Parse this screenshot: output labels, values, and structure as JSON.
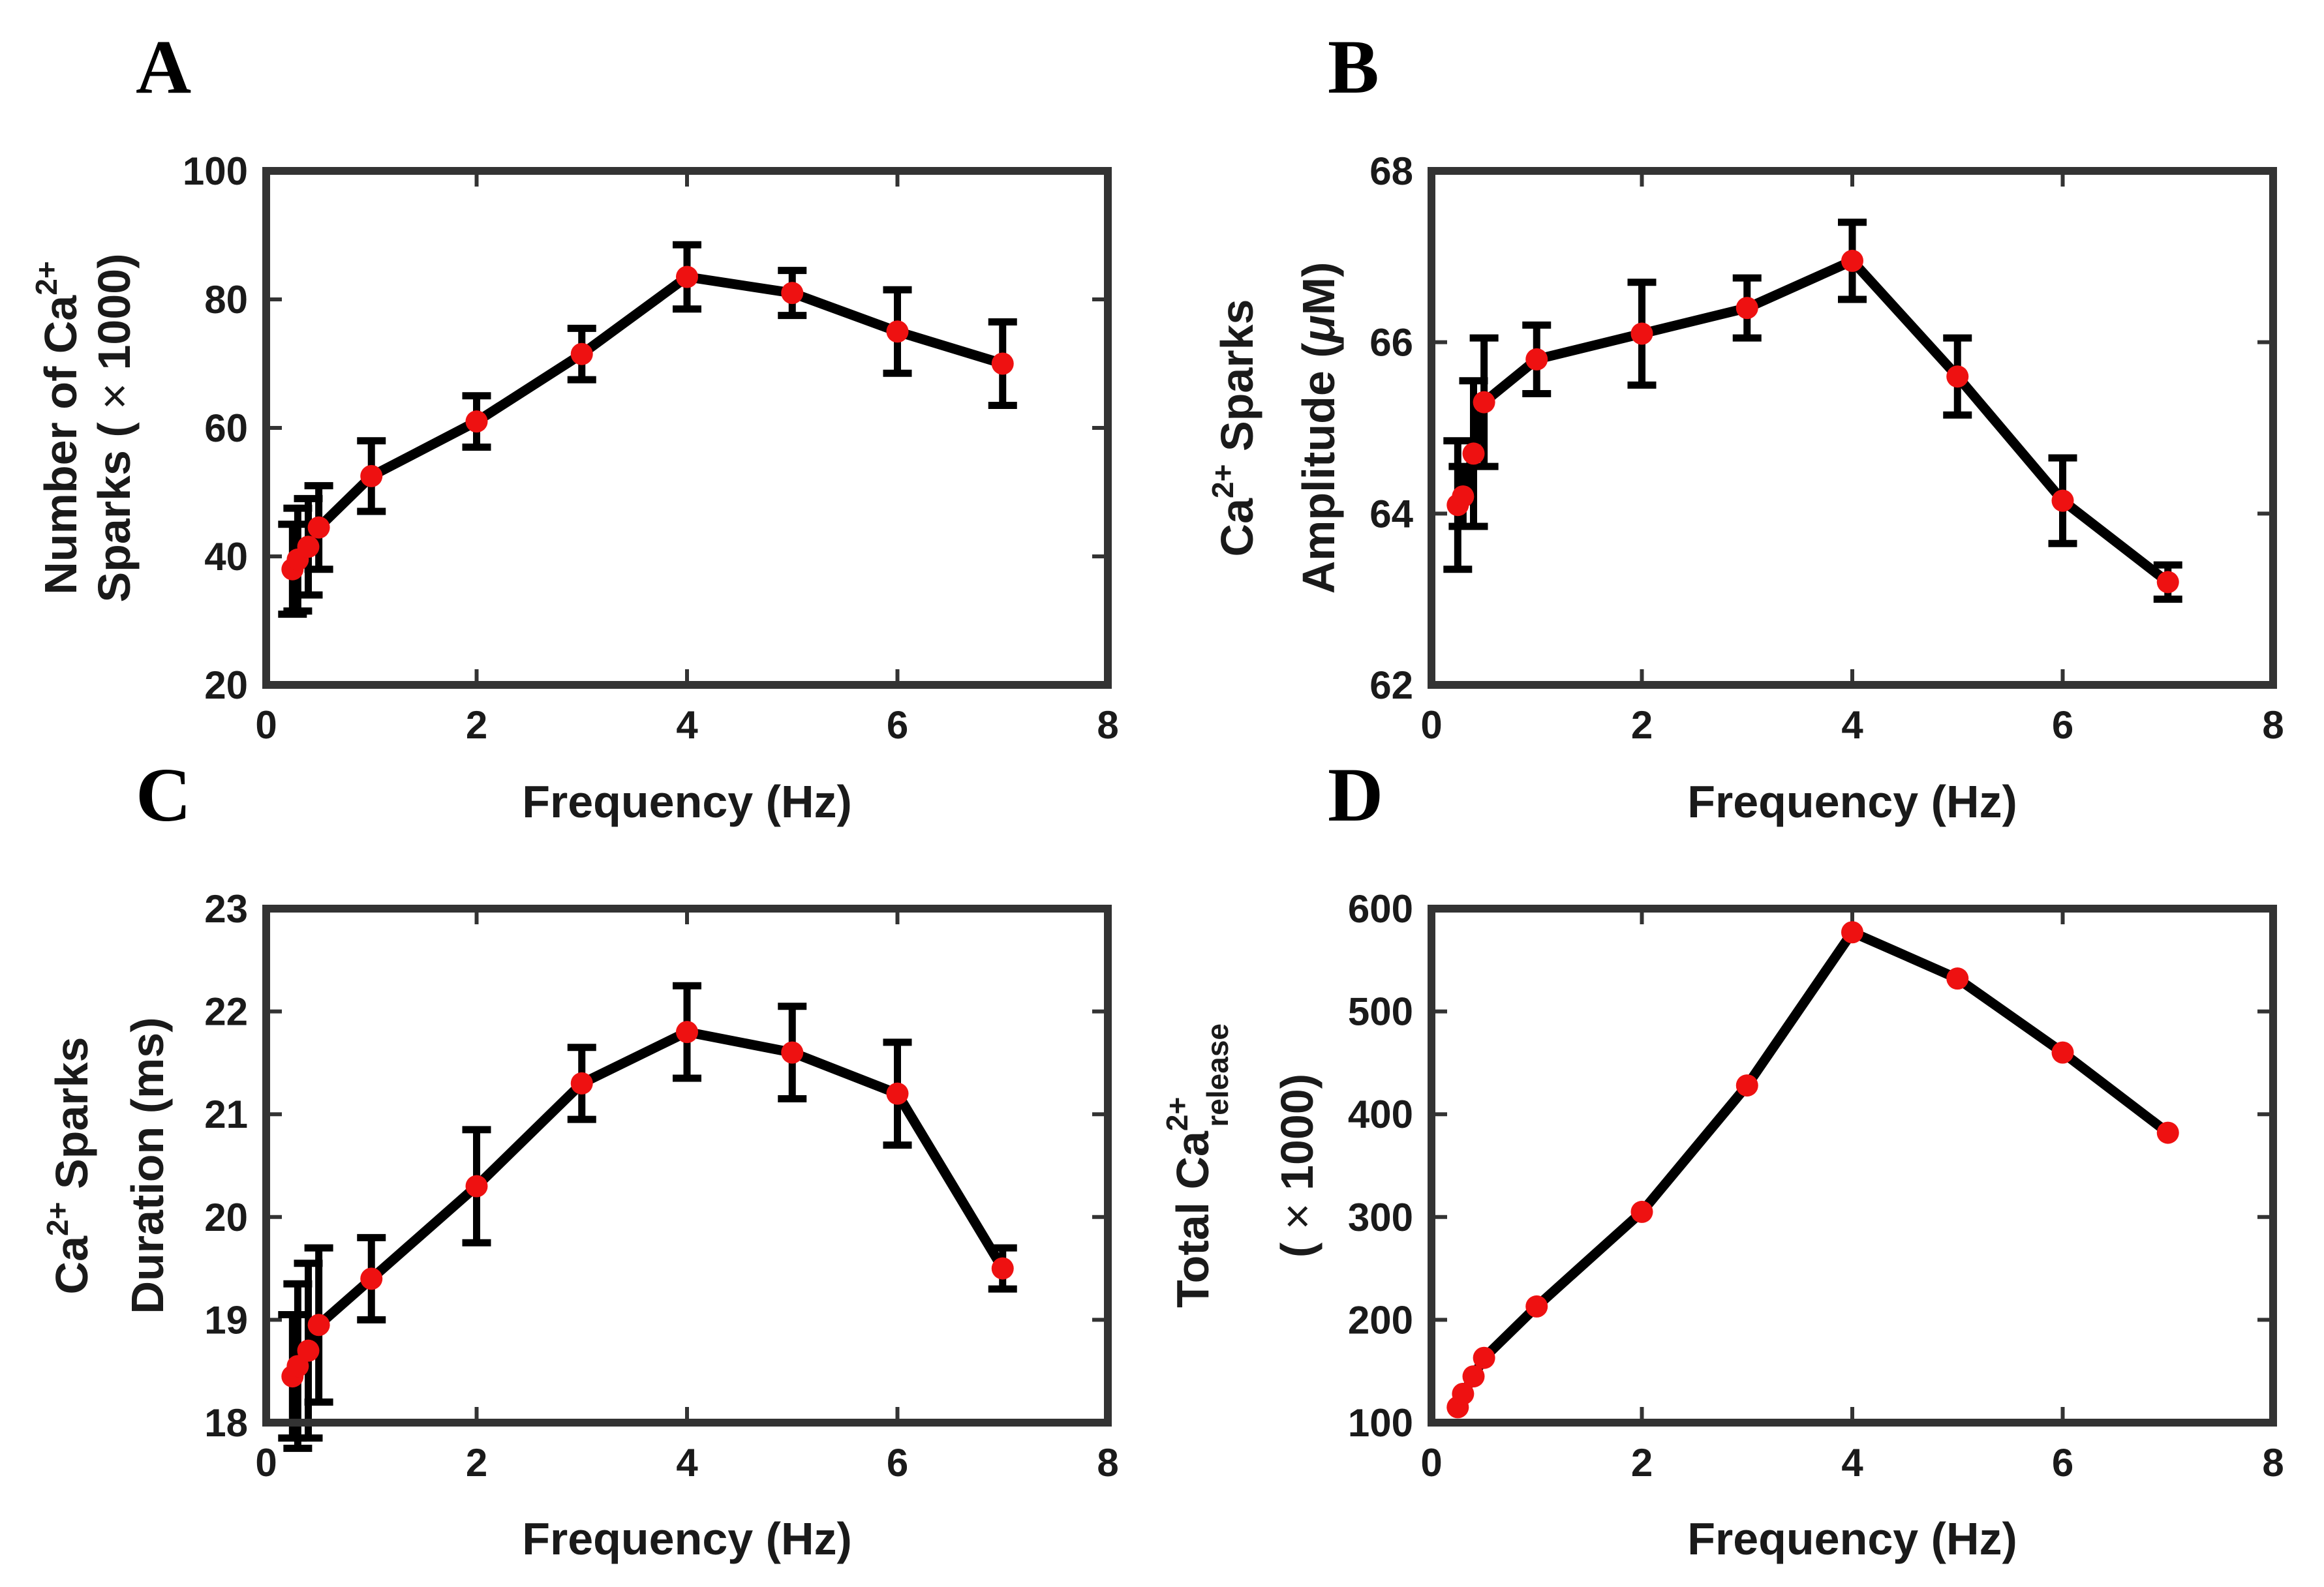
{
  "colors": {
    "line": "#000000",
    "marker": "#ee1111",
    "axes": "#333333"
  },
  "chart_data": [
    {
      "panel": "A",
      "type": "line",
      "xlabel": "Frequency (Hz)",
      "ylabel_line1": {
        "pre": "Number of Ca",
        "sup": "2+",
        "post": ""
      },
      "ylabel_line2": {
        "pre": "Sparks ( ",
        "mid": "×",
        "post": " 1000)"
      },
      "xlim": [
        0,
        8
      ],
      "ylim": [
        20,
        100
      ],
      "xticks": [
        0,
        2,
        4,
        6,
        8
      ],
      "yticks": [
        20,
        40,
        60,
        80,
        100
      ],
      "grid": false,
      "series": [
        {
          "name": "Number of Ca2+ sparks",
          "x": [
            0.25,
            0.3,
            0.4,
            0.5,
            1,
            2,
            3,
            4,
            5,
            6,
            7
          ],
          "y": [
            38,
            39.5,
            41.5,
            44.5,
            52.5,
            61,
            71.5,
            83.5,
            81,
            75,
            70
          ],
          "err": [
            7,
            8,
            7.5,
            6.5,
            5.5,
            4,
            4,
            5,
            3.5,
            6.5,
            6.5
          ]
        }
      ]
    },
    {
      "panel": "B",
      "type": "line",
      "xlabel": "Frequency (Hz)",
      "ylabel_line1": {
        "pre": "Ca",
        "sup": "2+",
        "post": " Sparks"
      },
      "ylabel_line2": {
        "pre": "Amplitude (",
        "mid": "μ",
        "post": "M)"
      },
      "xlim": [
        0,
        8
      ],
      "ylim": [
        62,
        68
      ],
      "xticks": [
        0,
        2,
        4,
        6,
        8
      ],
      "yticks": [
        62,
        64,
        66,
        68
      ],
      "grid": false,
      "series": [
        {
          "name": "Ca2+ sparks amplitude",
          "x": [
            0.25,
            0.3,
            0.4,
            0.5,
            1,
            2,
            3,
            4,
            5,
            6,
            7
          ],
          "y": [
            64.1,
            64.2,
            64.7,
            65.3,
            65.8,
            66.1,
            66.4,
            66.95,
            65.6,
            64.15,
            63.2
          ],
          "err": [
            0.75,
            0.35,
            0.85,
            0.75,
            0.4,
            0.6,
            0.35,
            0.45,
            0.45,
            0.5,
            0.2
          ]
        }
      ]
    },
    {
      "panel": "C",
      "type": "line",
      "xlabel": "Frequency (Hz)",
      "ylabel_line1": {
        "pre": "Ca",
        "sup": "2+",
        "post": " Sparks"
      },
      "ylabel_line2": {
        "pre": "Duration (ms)",
        "mid": "",
        "post": ""
      },
      "xlim": [
        0,
        8
      ],
      "ylim": [
        18,
        23
      ],
      "xticks": [
        0,
        2,
        4,
        6,
        8
      ],
      "yticks": [
        18,
        19,
        20,
        21,
        22,
        23
      ],
      "grid": false,
      "series": [
        {
          "name": "Ca2+ sparks duration",
          "x": [
            0.25,
            0.3,
            0.4,
            0.5,
            1,
            2,
            3,
            4,
            5,
            6,
            7
          ],
          "y": [
            18.45,
            18.55,
            18.7,
            18.95,
            19.4,
            20.3,
            21.3,
            21.8,
            21.6,
            21.2,
            19.5
          ],
          "err": [
            0.6,
            0.8,
            0.85,
            0.75,
            0.4,
            0.55,
            0.35,
            0.45,
            0.45,
            0.5,
            0.2
          ]
        }
      ]
    },
    {
      "panel": "D",
      "type": "line",
      "xlabel": "Frequency (Hz)",
      "ylabel_line1": {
        "pre": "Total Ca",
        "sup": "2+",
        "sub": "release"
      },
      "ylabel_line2": {
        "pre": "( ",
        "mid": "×",
        "post": " 1000)"
      },
      "xlim": [
        0,
        8
      ],
      "ylim": [
        100,
        600
      ],
      "xticks": [
        0,
        2,
        4,
        6,
        8
      ],
      "yticks": [
        100,
        200,
        300,
        400,
        500,
        600
      ],
      "grid": false,
      "series": [
        {
          "name": "Total Ca2+ release",
          "x": [
            0.25,
            0.3,
            0.4,
            0.5,
            1,
            2,
            3,
            4,
            5,
            6,
            7
          ],
          "y": [
            115,
            128,
            145,
            163,
            213,
            305,
            428,
            577,
            532,
            460,
            382
          ],
          "err": null
        }
      ]
    }
  ]
}
